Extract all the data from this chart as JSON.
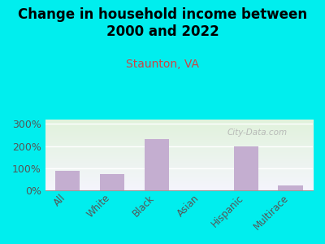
{
  "title": "Change in household income between\n2000 and 2022",
  "subtitle": "Staunton, VA",
  "categories": [
    "All",
    "White",
    "Black",
    "Asian",
    "Hispanic",
    "Multirace"
  ],
  "values": [
    90,
    75,
    233,
    0,
    198,
    22
  ],
  "bar_color": "#c4aed0",
  "title_fontsize": 12,
  "subtitle_fontsize": 10,
  "subtitle_color": "#cc4444",
  "background_color": "#00eeee",
  "ylim": [
    0,
    320
  ],
  "yticks": [
    0,
    100,
    200,
    300
  ],
  "ytick_labels": [
    "0%",
    "100%",
    "200%",
    "300%"
  ],
  "watermark": "City-Data.com",
  "watermark_color": "#b0b0b0",
  "ytick_color": "#555555",
  "xtick_color": "#555555"
}
